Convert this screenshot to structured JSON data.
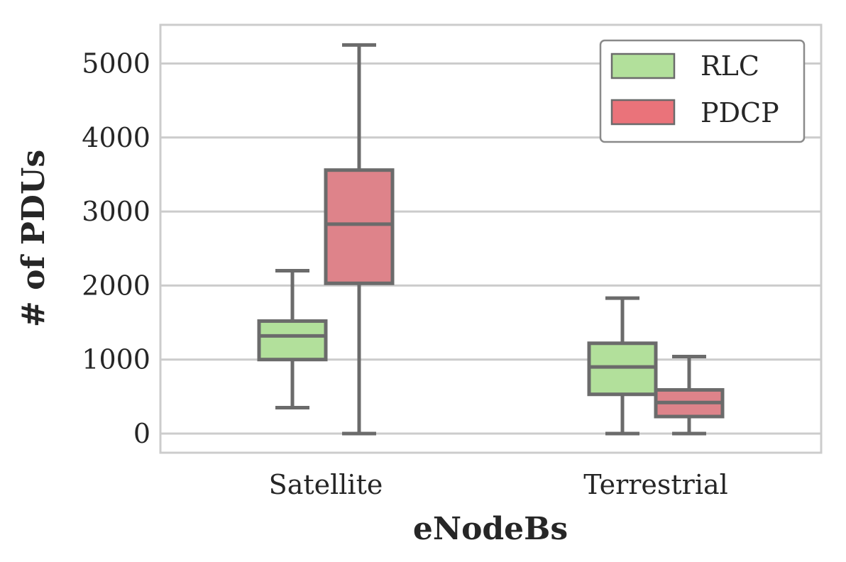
{
  "chart_data": {
    "type": "box",
    "xlabel": "eNodeBs",
    "ylabel": "# of PDUs",
    "categories": [
      "Satellite",
      "Terrestrial"
    ],
    "ylim": [
      -250,
      5500
    ],
    "yticks": [
      "0",
      "1000",
      "2000",
      "3000",
      "4000",
      "5000"
    ],
    "ytick_values": [
      0,
      1000,
      2000,
      3000,
      4000,
      5000
    ],
    "grid": "horizontal",
    "legend_position": "top-right",
    "series": [
      {
        "name": "RLC",
        "color": "#b2e09b",
        "boxes": [
          {
            "category": "Satellite",
            "whisker_low": 350,
            "q1": 1000,
            "median": 1320,
            "q3": 1520,
            "whisker_high": 2200
          },
          {
            "category": "Terrestrial",
            "whisker_low": 0,
            "q1": 530,
            "median": 900,
            "q3": 1220,
            "whisker_high": 1830
          }
        ]
      },
      {
        "name": "PDCP",
        "color": "#de838a",
        "boxes": [
          {
            "category": "Satellite",
            "whisker_low": 0,
            "q1": 2030,
            "median": 2830,
            "q3": 3560,
            "whisker_high": 5250
          },
          {
            "category": "Terrestrial",
            "whisker_low": 0,
            "q1": 230,
            "median": 420,
            "q3": 590,
            "whisker_high": 1040
          }
        ]
      }
    ],
    "legend_patch_colors": {
      "RLC": "#b2e09b",
      "PDCP": "#ea737a"
    },
    "line_color": "#6b6b6b",
    "grid_color": "#cccccc"
  }
}
